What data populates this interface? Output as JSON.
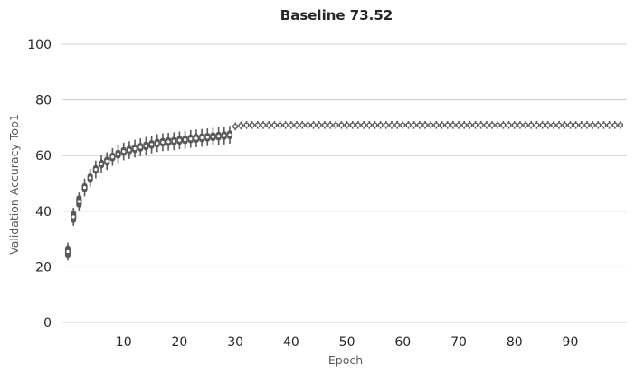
{
  "chart_data": {
    "type": "violin",
    "title": "Baseline 73.52",
    "xlabel": "Epoch",
    "ylabel": "Validation Accuracy Top1",
    "ylim": [
      0,
      100
    ],
    "xlim": [
      0,
      99
    ],
    "yticks": [
      0,
      20,
      40,
      60,
      80,
      100
    ],
    "xticks": [
      10,
      20,
      30,
      40,
      50,
      60,
      70,
      80,
      90
    ],
    "grid": "horizontal",
    "epochs_start": 0,
    "medians": [
      25.5,
      38,
      43.5,
      48.5,
      52,
      55,
      57,
      58,
      59.5,
      60.5,
      61.5,
      62,
      62.5,
      63,
      63.5,
      64,
      64.5,
      64.8,
      65,
      65.2,
      65.5,
      65.7,
      66,
      66.2,
      66.4,
      66.6,
      66.8,
      67,
      67.2,
      67.5,
      70.5,
      70.8,
      71,
      71,
      71,
      71,
      71,
      71,
      71,
      71,
      71,
      71,
      71,
      71,
      71,
      71,
      71,
      71,
      71,
      71,
      71,
      71,
      71,
      71,
      71,
      71,
      71,
      71,
      71,
      71,
      71,
      71,
      71,
      71,
      71,
      71,
      71,
      71,
      71,
      71,
      71,
      71,
      71,
      71,
      71,
      71,
      71,
      71,
      71,
      71,
      71,
      71,
      71,
      71,
      71,
      71,
      71,
      71,
      71,
      71,
      71,
      71,
      71,
      71,
      71,
      71,
      71,
      71,
      71,
      71
    ],
    "series_color": "#595959",
    "median_color": "#ffffff"
  }
}
